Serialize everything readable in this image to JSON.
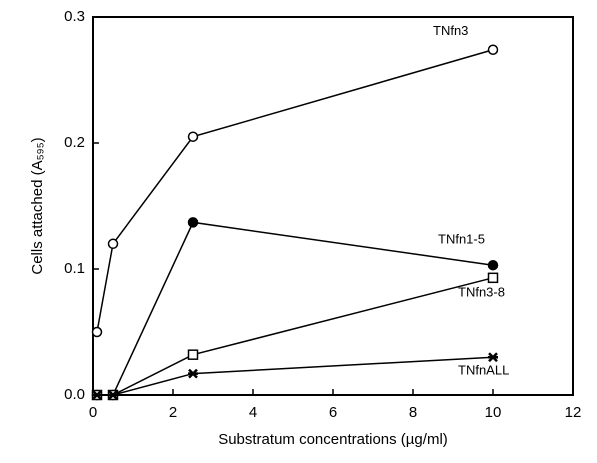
{
  "chart_data": {
    "type": "line",
    "xlabel": "Substratum concentrations (µg/ml)",
    "ylabel": "Cells attached (A₅₉₅)",
    "xlim": [
      0,
      12
    ],
    "xticks": [
      0,
      2,
      4,
      6,
      8,
      10,
      12
    ],
    "ylim": [
      0,
      0.3
    ],
    "yticks": [
      {
        "value": 0,
        "label": "0.0"
      },
      0.1,
      0.2,
      0.3
    ],
    "x": [
      0.1,
      0.5,
      2.5,
      10
    ],
    "series": [
      {
        "name": "TNfn3",
        "color": "#000000",
        "marker": "open-circle",
        "values": [
          0.05,
          0.12,
          0.205,
          0.274
        ]
      },
      {
        "name": "TNfn1-5",
        "color": "#000000",
        "marker": "filled-circle",
        "values": [
          0,
          0,
          0.137,
          0.103
        ]
      },
      {
        "name": "TNfn3-8",
        "color": "#000000",
        "marker": "open-square",
        "values": [
          0,
          0,
          0.032,
          0.093
        ]
      },
      {
        "name": "TNfnALL",
        "color": "#000000",
        "marker": "star",
        "values": [
          0,
          0,
          0.017,
          0.03
        ]
      }
    ]
  }
}
